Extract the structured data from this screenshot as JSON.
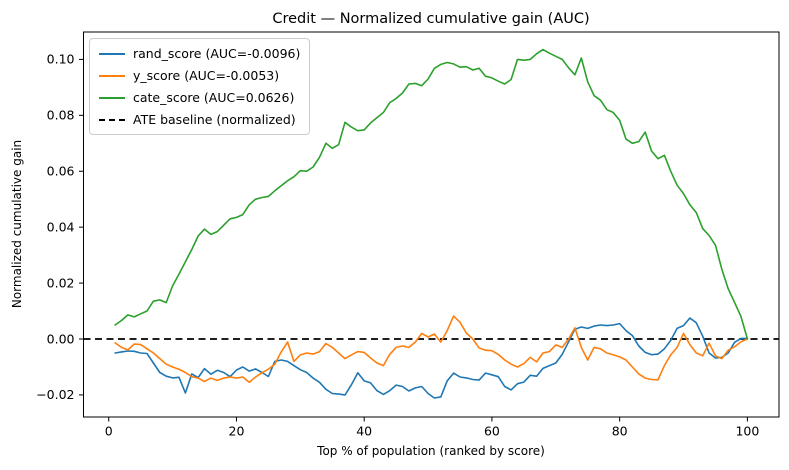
{
  "figure": {
    "background_color": "#ffffff",
    "text_color": "#000000",
    "spine_color": "#000000"
  },
  "chart_data": {
    "type": "line",
    "title": "Credit — Normalized cumulative gain (AUC)",
    "xlabel": "Top % of population (ranked by score)",
    "ylabel": "Normalized cumulative gain",
    "xlim": [
      -3.95,
      104.95
    ],
    "ylim": [
      -0.0279,
      0.1098
    ],
    "xticks": [
      0,
      20,
      40,
      60,
      80,
      100
    ],
    "yticks": [
      -0.02,
      0.0,
      0.02,
      0.04,
      0.06,
      0.08,
      0.1
    ],
    "grid": false,
    "legend_position": "upper left",
    "x": [
      1,
      2,
      3,
      4,
      5,
      6,
      7,
      8,
      9,
      10,
      11,
      12,
      13,
      14,
      15,
      16,
      17,
      18,
      19,
      20,
      21,
      22,
      23,
      24,
      25,
      26,
      27,
      28,
      29,
      30,
      31,
      32,
      33,
      34,
      35,
      36,
      37,
      38,
      39,
      40,
      41,
      42,
      43,
      44,
      45,
      46,
      47,
      48,
      49,
      50,
      51,
      52,
      53,
      54,
      55,
      56,
      57,
      58,
      59,
      60,
      61,
      62,
      63,
      64,
      65,
      66,
      67,
      68,
      69,
      70,
      71,
      72,
      73,
      74,
      75,
      76,
      77,
      78,
      79,
      80,
      81,
      82,
      83,
      84,
      85,
      86,
      87,
      88,
      89,
      90,
      91,
      92,
      93,
      94,
      95,
      96,
      97,
      98,
      99,
      100
    ],
    "series": [
      {
        "name": "rand_score (AUC=-0.0096)",
        "color": "#1f77b4",
        "line_style": "solid",
        "values": [
          -0.005,
          -0.0046,
          -0.0043,
          -0.0044,
          -0.005,
          -0.0052,
          -0.0086,
          -0.012,
          -0.0133,
          -0.0139,
          -0.0137,
          -0.0193,
          -0.0125,
          -0.0138,
          -0.0106,
          -0.0126,
          -0.0112,
          -0.012,
          -0.0135,
          -0.0111,
          -0.01,
          -0.0115,
          -0.0107,
          -0.012,
          -0.0134,
          -0.008,
          -0.0075,
          -0.008,
          -0.0095,
          -0.011,
          -0.012,
          -0.014,
          -0.0155,
          -0.018,
          -0.0195,
          -0.0197,
          -0.02,
          -0.0164,
          -0.0121,
          -0.015,
          -0.0157,
          -0.0185,
          -0.0198,
          -0.0185,
          -0.0165,
          -0.017,
          -0.0186,
          -0.0175,
          -0.017,
          -0.0195,
          -0.0211,
          -0.0207,
          -0.015,
          -0.0122,
          -0.0136,
          -0.0139,
          -0.0145,
          -0.0147,
          -0.0122,
          -0.0128,
          -0.0135,
          -0.017,
          -0.0182,
          -0.016,
          -0.0154,
          -0.013,
          -0.0133,
          -0.0105,
          -0.0095,
          -0.0086,
          -0.0055,
          -0.001,
          0.0035,
          0.0043,
          0.0038,
          0.0046,
          0.005,
          0.0048,
          0.005,
          0.0055,
          0.003,
          0.0012,
          -0.0025,
          -0.0048,
          -0.0056,
          -0.0054,
          -0.0035,
          -0.0005,
          0.0038,
          0.0048,
          0.0075,
          0.0058,
          0.001,
          -0.005,
          -0.0068,
          -0.0066,
          -0.005,
          -0.0012,
          0.0002,
          0.0002
        ]
      },
      {
        "name": "y_score (AUC=-0.0053)",
        "color": "#ff7f0e",
        "line_style": "solid",
        "values": [
          -0.0014,
          -0.003,
          -0.0039,
          -0.0018,
          -0.002,
          -0.0035,
          -0.005,
          -0.007,
          -0.009,
          -0.01,
          -0.0108,
          -0.012,
          -0.0135,
          -0.014,
          -0.0152,
          -0.014,
          -0.0148,
          -0.014,
          -0.0136,
          -0.014,
          -0.0136,
          -0.0155,
          -0.0136,
          -0.0121,
          -0.0108,
          -0.009,
          -0.0046,
          -0.0011,
          -0.008,
          -0.0057,
          -0.005,
          -0.0054,
          -0.0045,
          -0.0016,
          -0.003,
          -0.005,
          -0.007,
          -0.0057,
          -0.0045,
          -0.0048,
          -0.0068,
          -0.0086,
          -0.0095,
          -0.0055,
          -0.003,
          -0.0025,
          -0.003,
          -0.0011,
          0.002,
          0.0007,
          0.0018,
          -0.0011,
          0.003,
          0.0082,
          0.006,
          0.0021,
          0.0,
          -0.0032,
          -0.004,
          -0.0042,
          -0.0055,
          -0.0075,
          -0.009,
          -0.01,
          -0.0088,
          -0.0066,
          -0.0082,
          -0.005,
          -0.0045,
          -0.0021,
          -0.003,
          0.0,
          0.004,
          -0.003,
          -0.0075,
          -0.003,
          -0.0035,
          -0.005,
          -0.0057,
          -0.0064,
          -0.0075,
          -0.01,
          -0.0125,
          -0.014,
          -0.0145,
          -0.0146,
          -0.0095,
          -0.0057,
          -0.003,
          0.002,
          -0.002,
          -0.005,
          -0.006,
          -0.0015,
          -0.006,
          -0.007,
          -0.004,
          -0.0028,
          -0.001,
          0.0
        ]
      },
      {
        "name": "cate_score (AUC=0.0626)",
        "color": "#2ca02c",
        "line_style": "solid",
        "values": [
          0.005,
          0.0066,
          0.0086,
          0.0079,
          0.009,
          0.01,
          0.0135,
          0.014,
          0.013,
          0.019,
          0.0232,
          0.0276,
          0.032,
          0.0368,
          0.0393,
          0.0374,
          0.0384,
          0.0407,
          0.043,
          0.0435,
          0.0445,
          0.048,
          0.05,
          0.0506,
          0.051,
          0.053,
          0.0548,
          0.0566,
          0.058,
          0.0602,
          0.06,
          0.0615,
          0.065,
          0.07,
          0.0682,
          0.0695,
          0.0775,
          0.0758,
          0.0745,
          0.0748,
          0.0773,
          0.0792,
          0.081,
          0.0845,
          0.086,
          0.088,
          0.0912,
          0.0914,
          0.0906,
          0.093,
          0.0968,
          0.0982,
          0.0989,
          0.0984,
          0.0972,
          0.0974,
          0.0962,
          0.0968,
          0.094,
          0.0934,
          0.0922,
          0.0912,
          0.0928,
          0.1,
          0.0997,
          0.1,
          0.102,
          0.1035,
          0.1022,
          0.1011,
          0.1,
          0.097,
          0.0945,
          0.1005,
          0.092,
          0.087,
          0.0854,
          0.082,
          0.081,
          0.0782,
          0.0715,
          0.07,
          0.0706,
          0.074,
          0.0672,
          0.0645,
          0.0657,
          0.06,
          0.055,
          0.052,
          0.048,
          0.0452,
          0.0395,
          0.037,
          0.0335,
          0.025,
          0.018,
          0.013,
          0.008,
          0.0
        ]
      }
    ],
    "baseline": {
      "name": "ATE baseline (normalized)",
      "color": "#000000",
      "line_style": "dashed",
      "y": 0.0
    }
  }
}
